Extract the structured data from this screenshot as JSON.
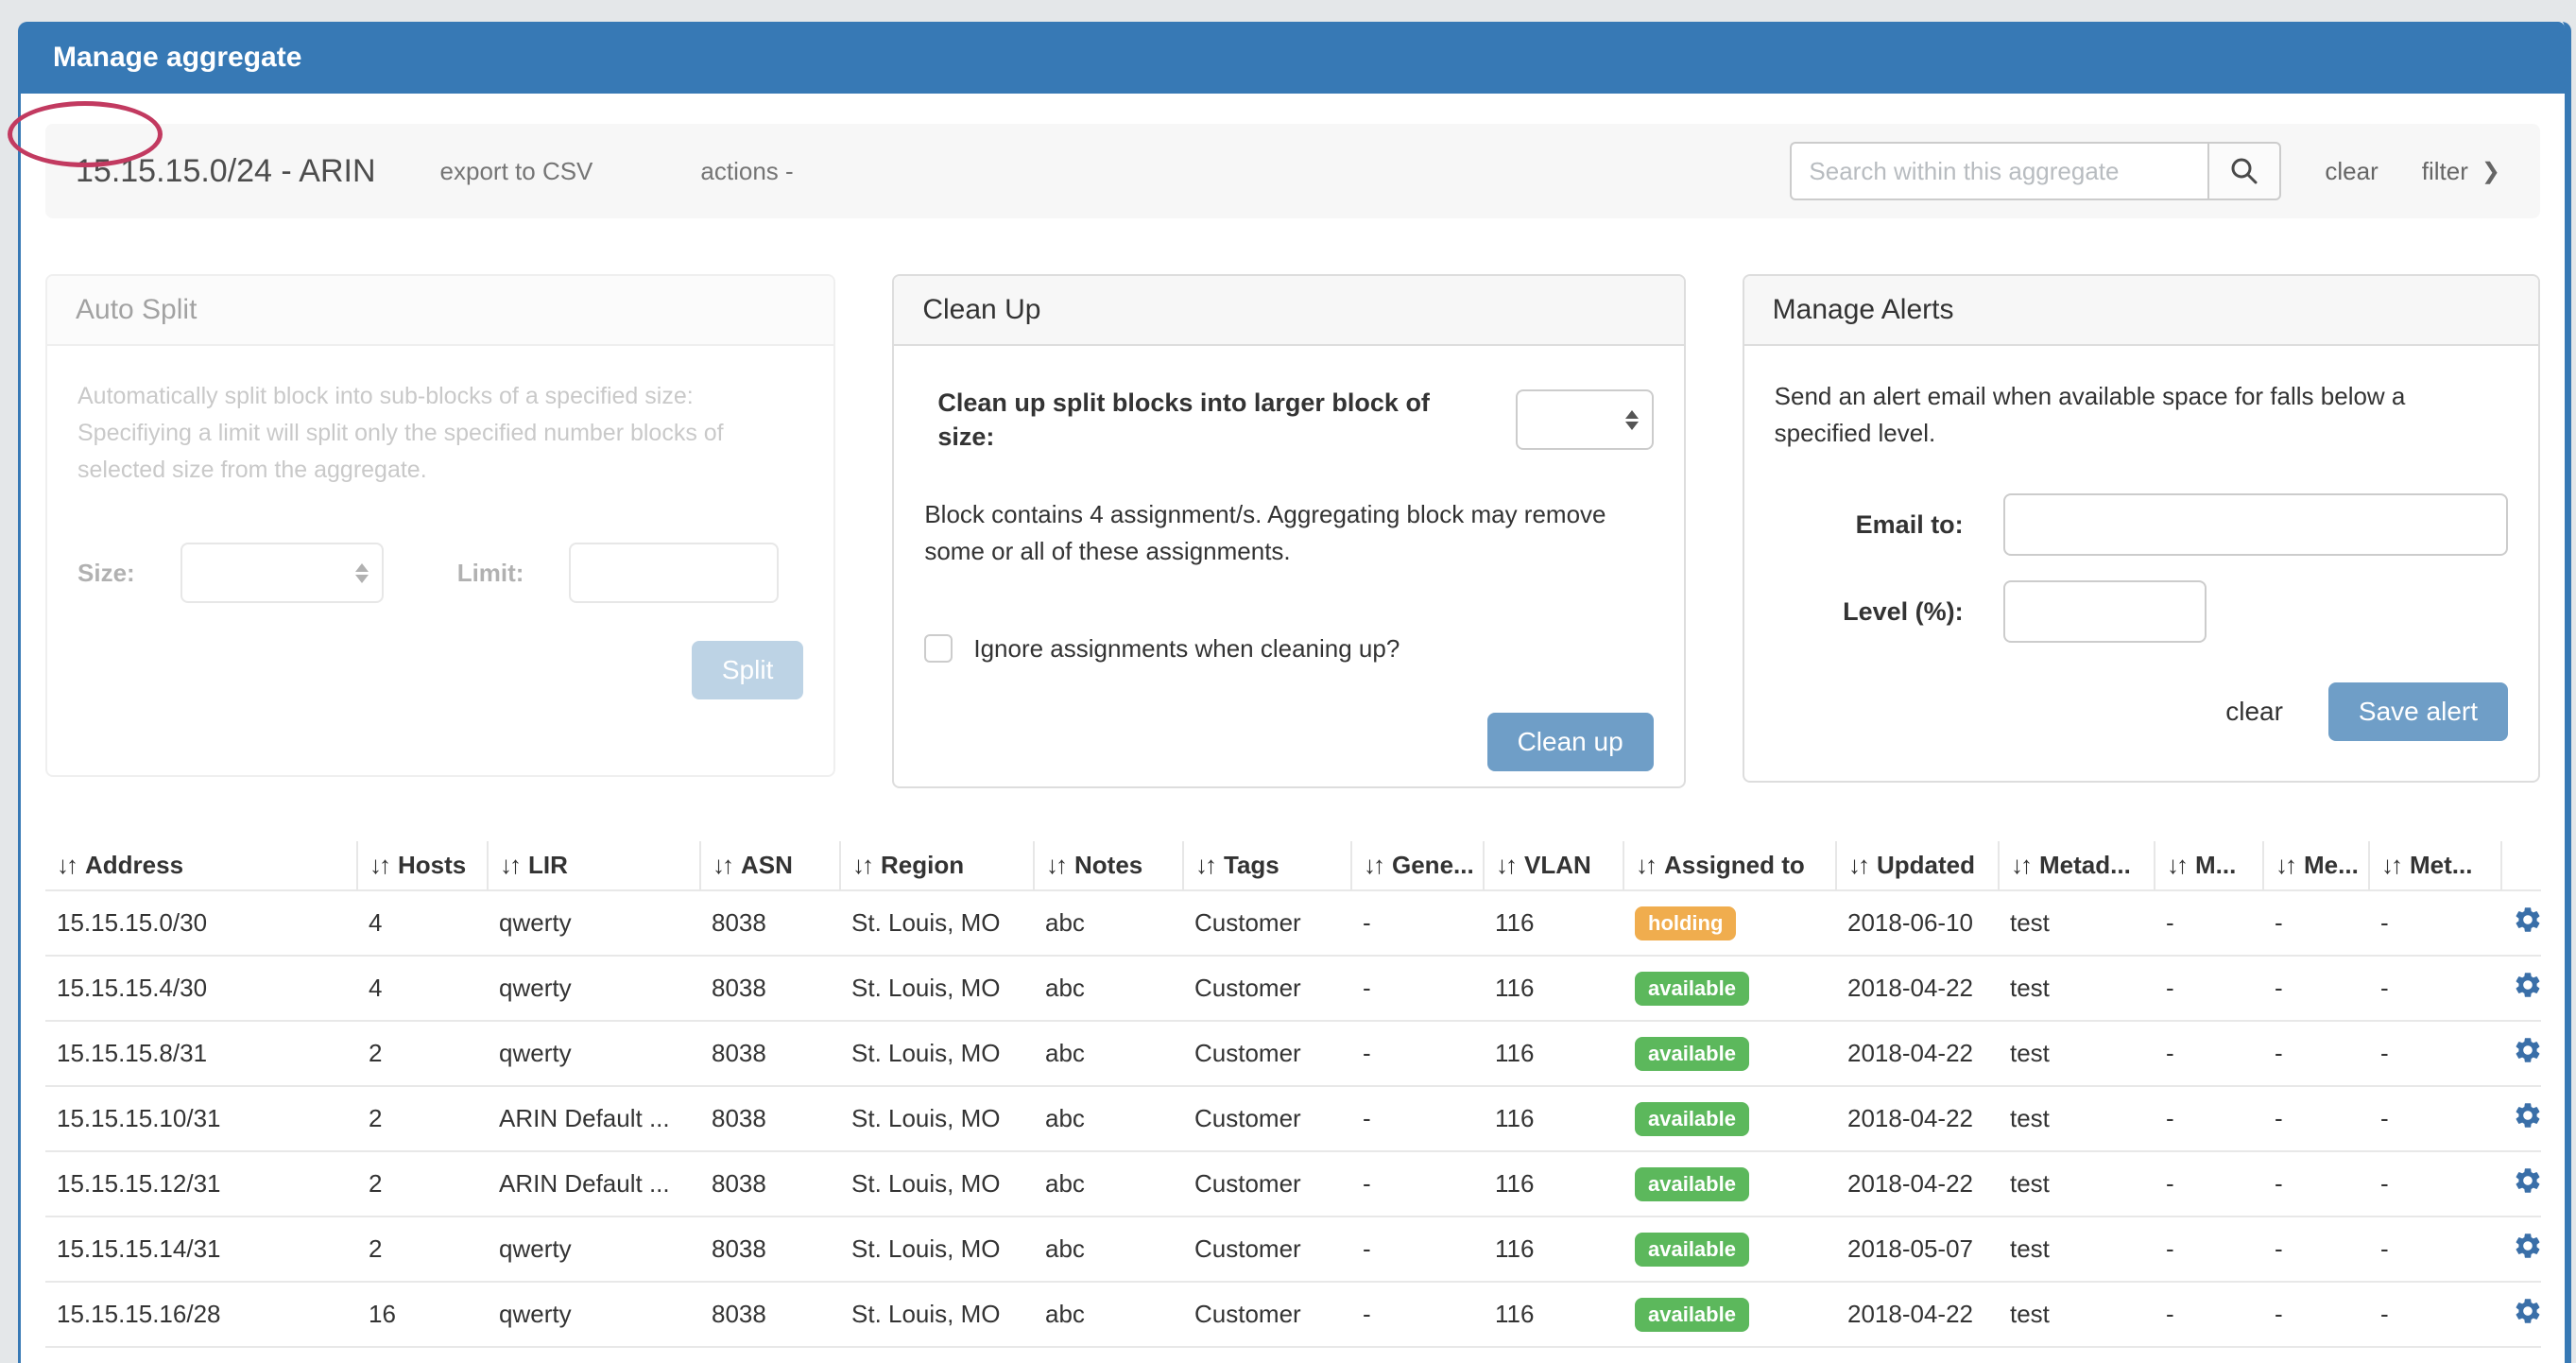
{
  "page": {
    "title": "Manage aggregate"
  },
  "toolbar": {
    "aggregate_title": "15.15.15.0/24 - ARIN",
    "export_csv_label": "export to CSV",
    "actions_label": "actions -",
    "search_placeholder": "Search within this aggregate",
    "search_value": "",
    "clear_label": "clear",
    "filter_label": "filter",
    "filter_chevron": "❯"
  },
  "auto_split": {
    "title": "Auto Split",
    "description": "Automatically split block into sub-blocks of a specified size: Specifiying a limit will split only the specified number blocks of selected size from the aggregate.",
    "size_label": "Size:",
    "size_value": "",
    "limit_label": "Limit:",
    "limit_value": "",
    "split_button": "Split"
  },
  "clean_up": {
    "title": "Clean Up",
    "size_label": "Clean up split blocks into larger block of size:",
    "size_value": "",
    "info": "Block contains 4 assignment/s. Aggregating block may remove some or all of these assignments.",
    "checkbox_label": "Ignore assignments when cleaning up?",
    "checkbox_checked": false,
    "button": "Clean up"
  },
  "manage_alerts": {
    "title": "Manage Alerts",
    "description": "Send an alert email when available space for falls below a specified level.",
    "email_label": "Email to:",
    "email_value": "",
    "level_label": "Level (%):",
    "level_value": "",
    "clear_label": "clear",
    "save_button": "Save alert"
  },
  "table": {
    "sort_icon": "↓↑",
    "columns": [
      "Address",
      "Hosts",
      "LIR",
      "ASN",
      "Region",
      "Notes",
      "Tags",
      "Gene...",
      "VLAN",
      "Assigned to",
      "Updated",
      "Metad...",
      "M...",
      "Me...",
      "Met..."
    ],
    "rows": [
      {
        "address": "15.15.15.0/30",
        "hosts": "4",
        "lir": "qwerty",
        "asn": "8038",
        "region": "St. Louis, MO",
        "notes": "abc",
        "tags": "Customer",
        "gene": "-",
        "vlan": "116",
        "assigned_to": "holding",
        "updated": "2018-06-10",
        "metad": "test",
        "m": "-",
        "me": "-",
        "met": "-"
      },
      {
        "address": "15.15.15.4/30",
        "hosts": "4",
        "lir": "qwerty",
        "asn": "8038",
        "region": "St. Louis, MO",
        "notes": "abc",
        "tags": "Customer",
        "gene": "-",
        "vlan": "116",
        "assigned_to": "available",
        "updated": "2018-04-22",
        "metad": "test",
        "m": "-",
        "me": "-",
        "met": "-"
      },
      {
        "address": "15.15.15.8/31",
        "hosts": "2",
        "lir": "qwerty",
        "asn": "8038",
        "region": "St. Louis, MO",
        "notes": "abc",
        "tags": "Customer",
        "gene": "-",
        "vlan": "116",
        "assigned_to": "available",
        "updated": "2018-04-22",
        "metad": "test",
        "m": "-",
        "me": "-",
        "met": "-"
      },
      {
        "address": "15.15.15.10/31",
        "hosts": "2",
        "lir": "ARIN Default ...",
        "asn": "8038",
        "region": "St. Louis, MO",
        "notes": "abc",
        "tags": "Customer",
        "gene": "-",
        "vlan": "116",
        "assigned_to": "available",
        "updated": "2018-04-22",
        "metad": "test",
        "m": "-",
        "me": "-",
        "met": "-"
      },
      {
        "address": "15.15.15.12/31",
        "hosts": "2",
        "lir": "ARIN Default ...",
        "asn": "8038",
        "region": "St. Louis, MO",
        "notes": "abc",
        "tags": "Customer",
        "gene": "-",
        "vlan": "116",
        "assigned_to": "available",
        "updated": "2018-04-22",
        "metad": "test",
        "m": "-",
        "me": "-",
        "met": "-"
      },
      {
        "address": "15.15.15.14/31",
        "hosts": "2",
        "lir": "qwerty",
        "asn": "8038",
        "region": "St. Louis, MO",
        "notes": "abc",
        "tags": "Customer",
        "gene": "-",
        "vlan": "116",
        "assigned_to": "available",
        "updated": "2018-05-07",
        "metad": "test",
        "m": "-",
        "me": "-",
        "met": "-"
      },
      {
        "address": "15.15.15.16/28",
        "hosts": "16",
        "lir": "qwerty",
        "asn": "8038",
        "region": "St. Louis, MO",
        "notes": "abc",
        "tags": "Customer",
        "gene": "-",
        "vlan": "116",
        "assigned_to": "available",
        "updated": "2018-04-22",
        "metad": "test",
        "m": "-",
        "me": "-",
        "met": "-"
      }
    ]
  },
  "colors": {
    "header_blue": "#3779b5",
    "button_blue": "#6f9ec7",
    "badge_holding": "#f0ad4e",
    "badge_available": "#5cb85c",
    "gear_blue": "#3a6fa8",
    "annotation_ellipse": "#c23a60"
  }
}
